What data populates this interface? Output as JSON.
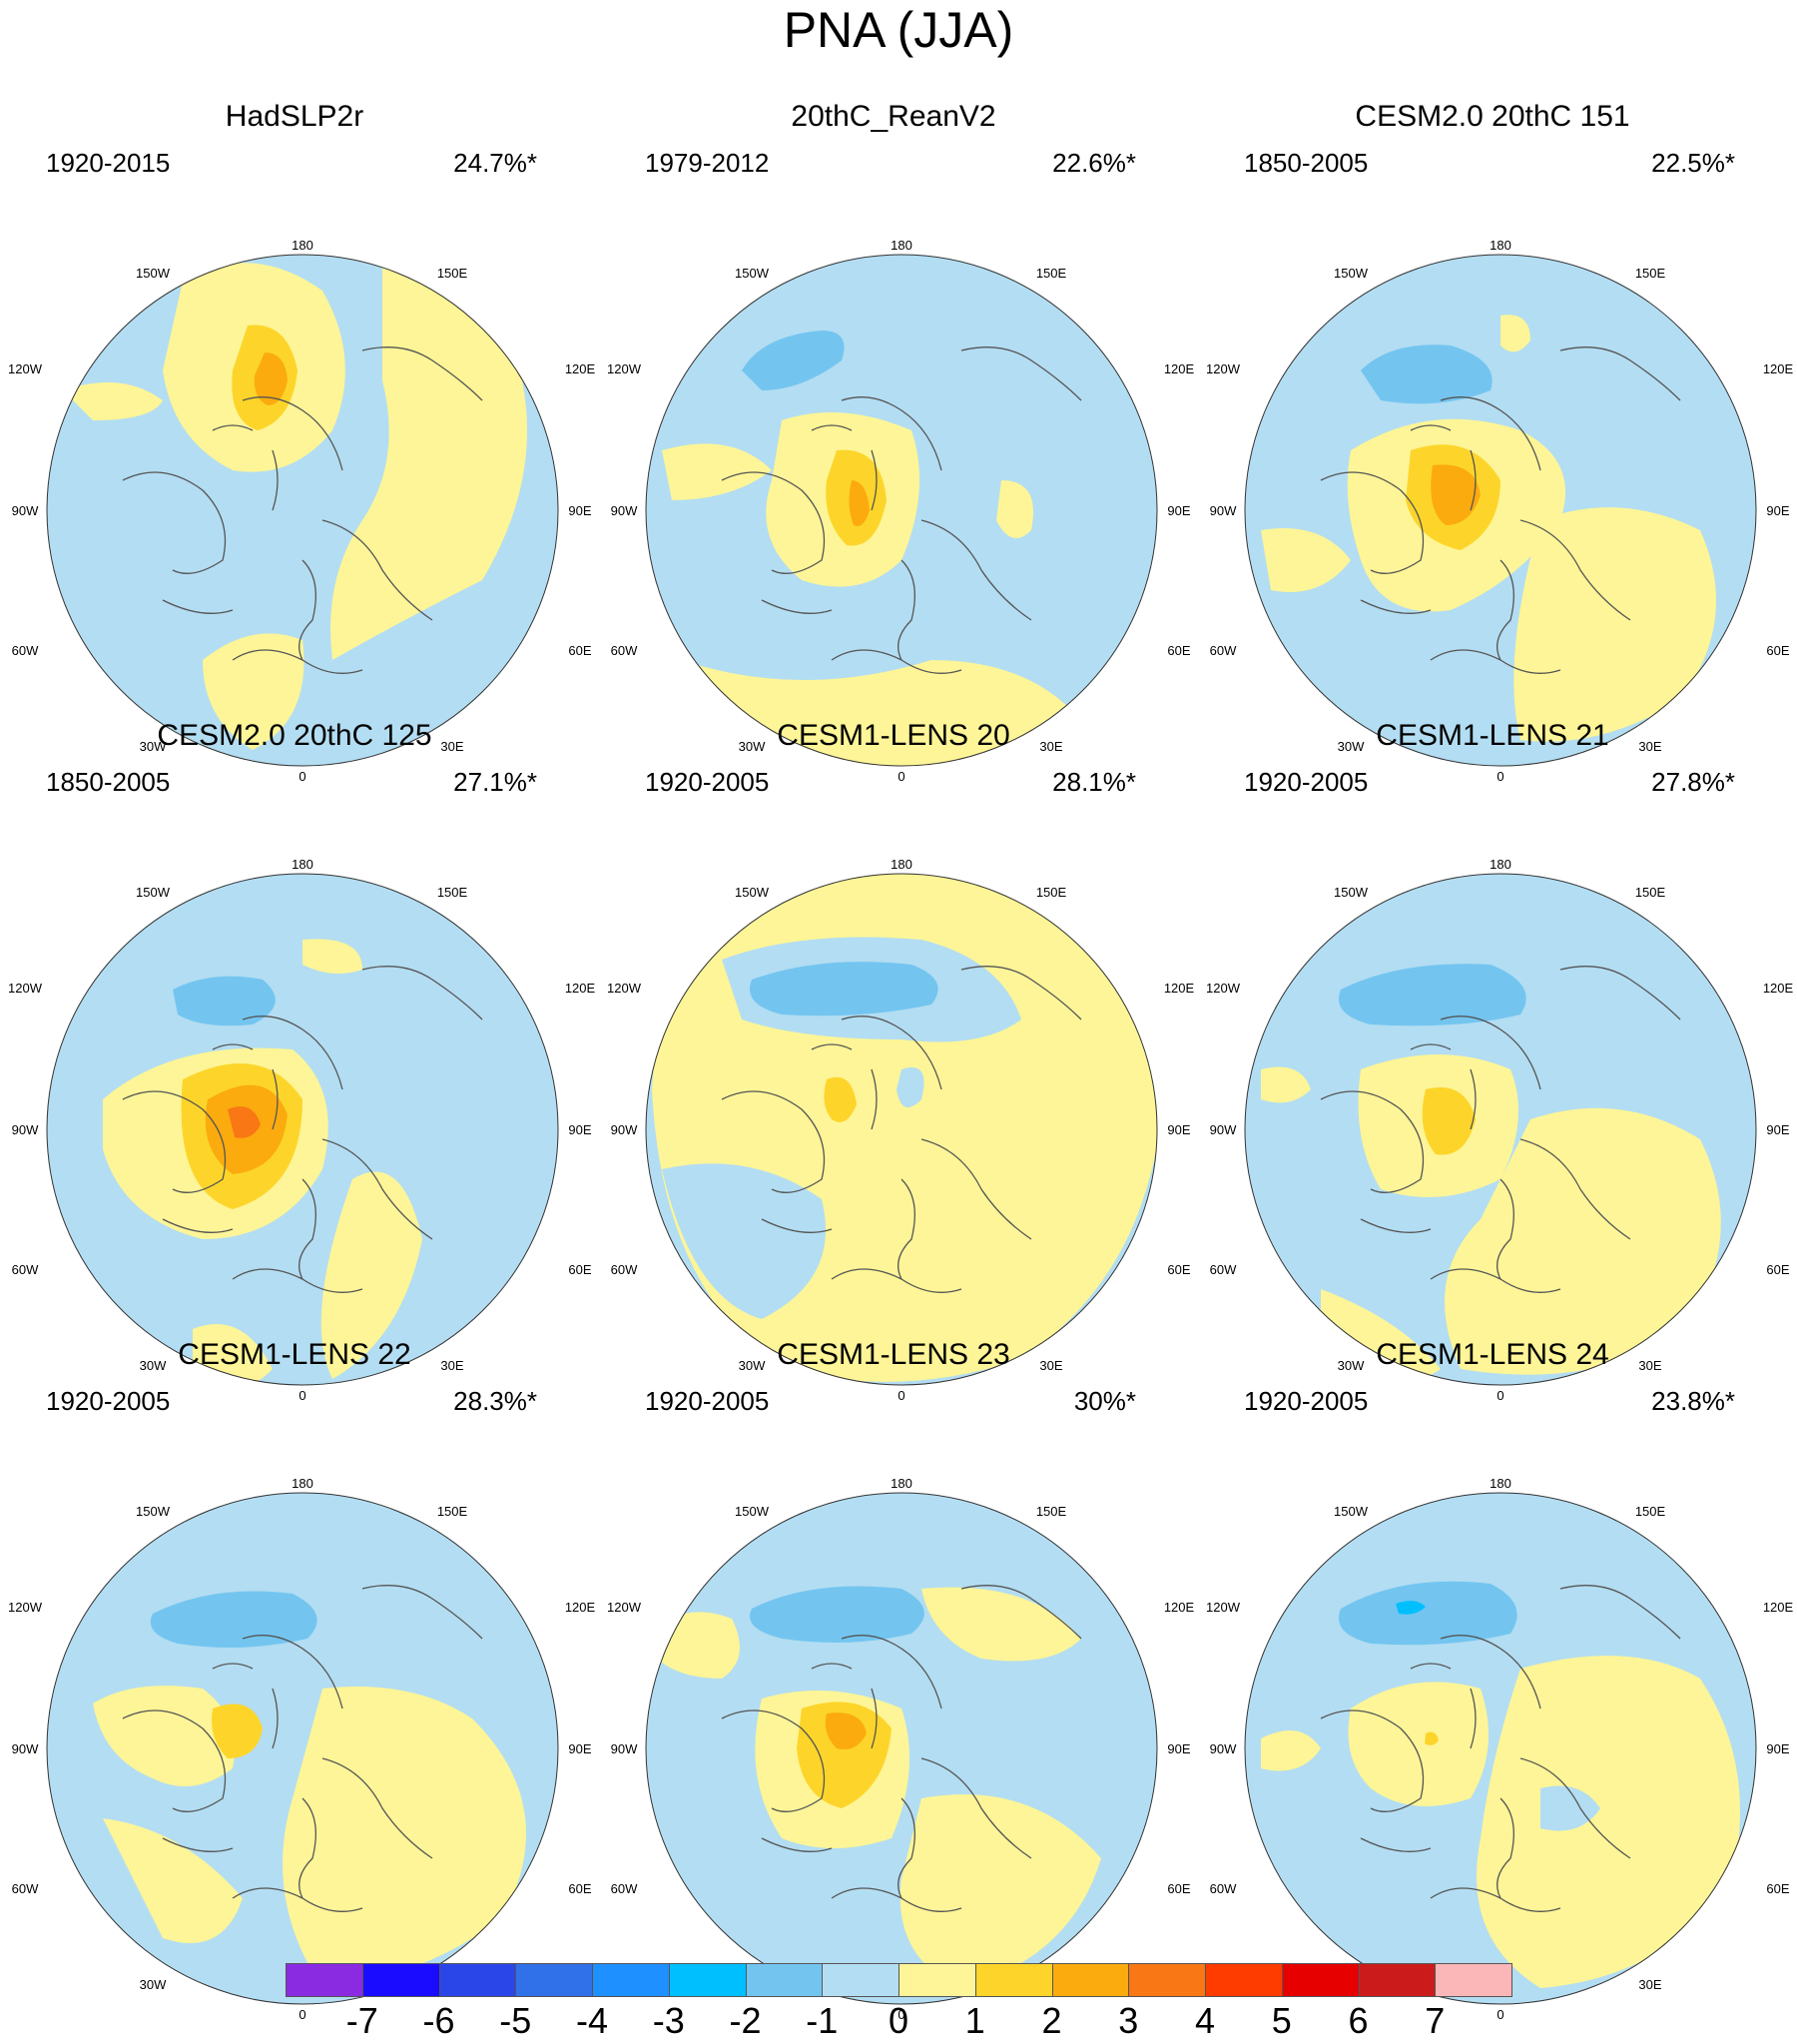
{
  "title": "PNA (JJA)",
  "panels": [
    {
      "title": "HadSLP2r",
      "period": "1920-2015",
      "pct": "24.7%*"
    },
    {
      "title": "20thC_ReanV2",
      "period": "1979-2012",
      "pct": "22.6%*"
    },
    {
      "title": "CESM2.0 20thC 151",
      "period": "1850-2005",
      "pct": "22.5%*"
    },
    {
      "title": "CESM2.0 20thC 125",
      "period": "1850-2005",
      "pct": "27.1%*"
    },
    {
      "title": "CESM1-LENS 20",
      "period": "1920-2005",
      "pct": "28.1%*"
    },
    {
      "title": "CESM1-LENS 21",
      "period": "1920-2005",
      "pct": "27.8%*"
    },
    {
      "title": "CESM1-LENS 22",
      "period": "1920-2005",
      "pct": "28.3%*"
    },
    {
      "title": "CESM1-LENS 23",
      "period": "1920-2005",
      "pct": "30%*"
    },
    {
      "title": "CESM1-LENS 24",
      "period": "1920-2005",
      "pct": "23.8%*"
    }
  ],
  "longitude_labels": {
    "top": "180",
    "bottom": "0",
    "upper_left": "150W",
    "upper_right": "150E",
    "left_upper": "120W",
    "right_upper": "120E",
    "left_mid": "90W",
    "right_mid": "90E",
    "left_lower": "60W",
    "right_lower": "60E",
    "lower_left": "30W",
    "lower_right": "30E"
  },
  "colorbar": {
    "labels": [
      "-7",
      "-6",
      "-5",
      "-4",
      "-3",
      "-2",
      "-1",
      "0",
      "1",
      "2",
      "3",
      "4",
      "5",
      "6",
      "7"
    ],
    "colors": [
      "#8a2be2",
      "#1a0dff",
      "#2a46e8",
      "#3070e8",
      "#1e90ff",
      "#00bfff",
      "#73c5f0",
      "#b3ddf2",
      "#fdf597",
      "#fdd52a",
      "#fbab0e",
      "#f97714",
      "#fe3c00",
      "#e60000",
      "#cc1b1b",
      "#fbb7b7"
    ]
  },
  "map_colors": {
    "ocean_neg1": "#b3ddf2",
    "neg2": "#73c5f0",
    "neg3": "#00bfff",
    "pos1": "#fdf597",
    "pos2": "#fdd52a",
    "pos3": "#fbab0e",
    "pos4": "#f97714",
    "coast": "#555555"
  }
}
